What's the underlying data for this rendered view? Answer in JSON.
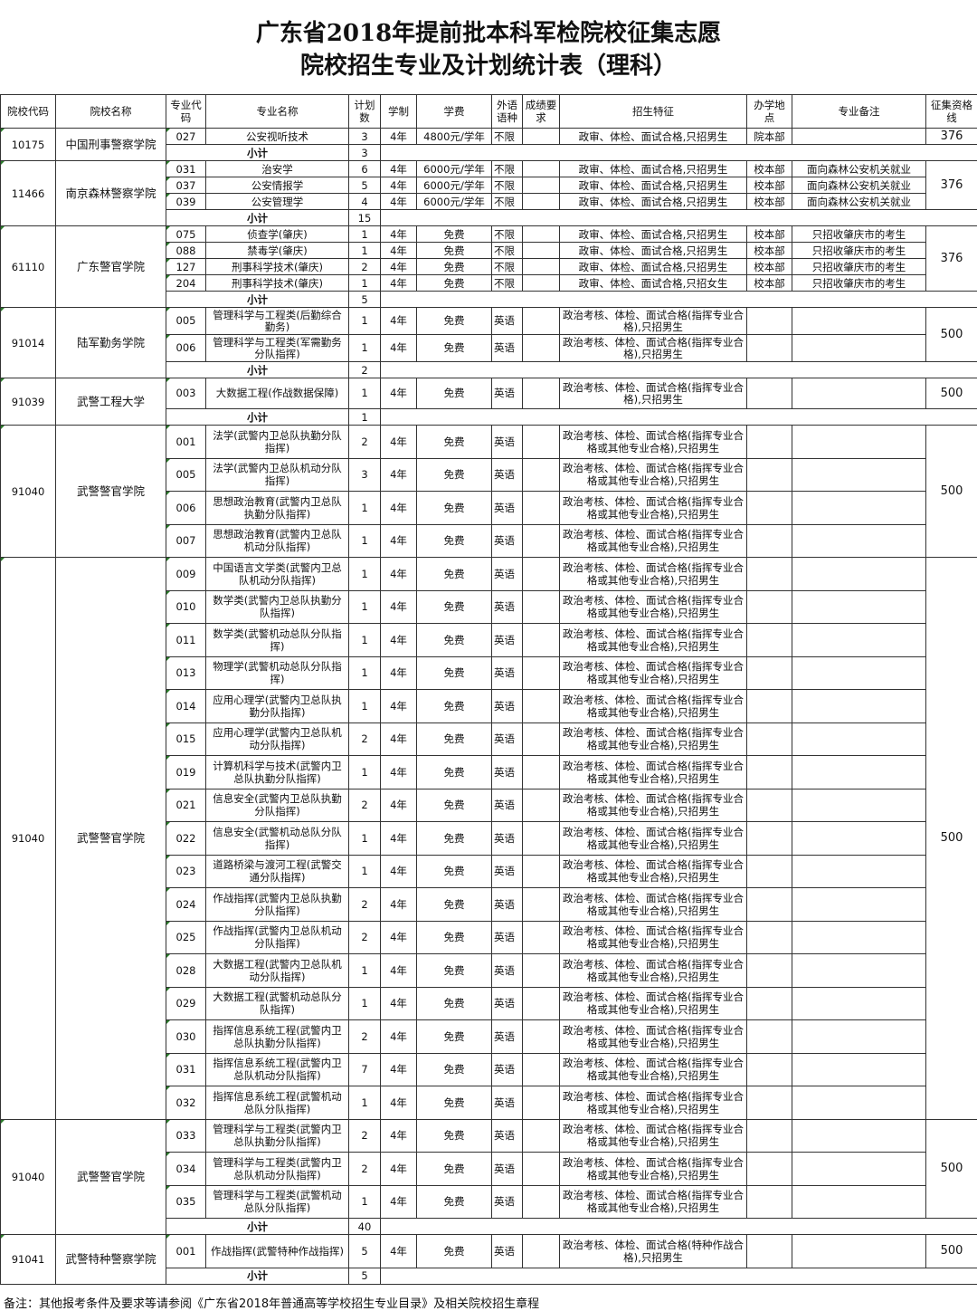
{
  "title_line1": "广东省2018年提前批本科军检院校征集志愿",
  "title_line2": "院校招生专业及计划统计表（理科）",
  "headers": [
    "院校代码",
    "院校名称",
    "专业代码",
    "专业名称",
    "计划数",
    "学制",
    "学费",
    "外语语种",
    "成绩要求",
    "招生特征",
    "办学地点",
    "专业备注",
    "征集资格线"
  ],
  "subtotal_label": "小计",
  "blocks": [
    {
      "school_code": "10175",
      "school_name": "中国刑事警察学院",
      "line": "376",
      "subtotal": "3",
      "rows": [
        {
          "code": "027",
          "major": "公安视听技术",
          "plan": "3",
          "years": "4年",
          "fee": "4800元/学年",
          "lang": "不限",
          "score": "",
          "feature": "政审、体检、面试合格,只招男生",
          "site": "院本部",
          "remark": ""
        }
      ]
    },
    {
      "school_code": "11466",
      "school_name": "南京森林警察学院",
      "line": "376",
      "subtotal": "15",
      "rows": [
        {
          "code": "031",
          "major": "治安学",
          "plan": "6",
          "years": "4年",
          "fee": "6000元/学年",
          "lang": "不限",
          "score": "",
          "feature": "政审、体检、面试合格,只招男生",
          "site": "校本部",
          "remark": "面向森林公安机关就业"
        },
        {
          "code": "037",
          "major": "公安情报学",
          "plan": "5",
          "years": "4年",
          "fee": "6000元/学年",
          "lang": "不限",
          "score": "",
          "feature": "政审、体检、面试合格,只招男生",
          "site": "校本部",
          "remark": "面向森林公安机关就业"
        },
        {
          "code": "039",
          "major": "公安管理学",
          "plan": "4",
          "years": "4年",
          "fee": "6000元/学年",
          "lang": "不限",
          "score": "",
          "feature": "政审、体检、面试合格,只招男生",
          "site": "校本部",
          "remark": "面向森林公安机关就业"
        }
      ]
    },
    {
      "school_code": "61110",
      "school_name": "广东警官学院",
      "line": "376",
      "subtotal": "5",
      "rows": [
        {
          "code": "075",
          "major": "侦查学(肇庆)",
          "plan": "1",
          "years": "4年",
          "fee": "免费",
          "lang": "不限",
          "score": "",
          "feature": "政审、体检、面试合格,只招男生",
          "site": "校本部",
          "remark": "只招收肇庆市的考生"
        },
        {
          "code": "088",
          "major": "禁毒学(肇庆)",
          "plan": "1",
          "years": "4年",
          "fee": "免费",
          "lang": "不限",
          "score": "",
          "feature": "政审、体检、面试合格,只招男生",
          "site": "校本部",
          "remark": "只招收肇庆市的考生"
        },
        {
          "code": "127",
          "major": "刑事科学技术(肇庆)",
          "plan": "2",
          "years": "4年",
          "fee": "免费",
          "lang": "不限",
          "score": "",
          "feature": "政审、体检、面试合格,只招男生",
          "site": "校本部",
          "remark": "只招收肇庆市的考生"
        },
        {
          "code": "204",
          "major": "刑事科学技术(肇庆)",
          "plan": "1",
          "years": "4年",
          "fee": "免费",
          "lang": "不限",
          "score": "",
          "feature": "政审、体检、面试合格,只招女生",
          "site": "校本部",
          "remark": "只招收肇庆市的考生"
        }
      ]
    },
    {
      "school_code": "91014",
      "school_name": "陆军勤务学院",
      "line": "500",
      "subtotal": "2",
      "rows": [
        {
          "code": "005",
          "major": "管理科学与工程类(后勤综合勤务)",
          "plan": "1",
          "years": "4年",
          "fee": "免费",
          "lang": "英语",
          "score": "",
          "feature": "政治考核、体检、面试合格(指挥专业合格),只招男生",
          "site": "",
          "remark": ""
        },
        {
          "code": "006",
          "major": "管理科学与工程类(军需勤务分队指挥)",
          "plan": "1",
          "years": "4年",
          "fee": "免费",
          "lang": "英语",
          "score": "",
          "feature": "政治考核、体检、面试合格(指挥专业合格),只招男生",
          "site": "",
          "remark": ""
        }
      ]
    },
    {
      "school_code": "91039",
      "school_name": "武警工程大学",
      "line": "500",
      "subtotal": "1",
      "rows": [
        {
          "code": "003",
          "major": "大数据工程(作战数据保障)",
          "plan": "1",
          "years": "4年",
          "fee": "免费",
          "lang": "英语",
          "score": "",
          "feature": "政治考核、体检、面试合格(指挥专业合格),只招男生",
          "site": "",
          "remark": ""
        }
      ]
    },
    {
      "school_code": "91040",
      "school_name": "武警警官学院",
      "line": "500",
      "subtotal": null,
      "rows": [
        {
          "code": "001",
          "major": "法学(武警内卫总队执勤分队指挥)",
          "plan": "2",
          "years": "4年",
          "fee": "免费",
          "lang": "英语",
          "score": "",
          "feature": "政治考核、体检、面试合格(指挥专业合格或其他专业合格),只招男生",
          "site": "",
          "remark": ""
        },
        {
          "code": "005",
          "major": "法学(武警内卫总队机动分队指挥)",
          "plan": "3",
          "years": "4年",
          "fee": "免费",
          "lang": "英语",
          "score": "",
          "feature": "政治考核、体检、面试合格(指挥专业合格或其他专业合格),只招男生",
          "site": "",
          "remark": ""
        },
        {
          "code": "006",
          "major": "思想政治教育(武警内卫总队执勤分队指挥)",
          "plan": "1",
          "years": "4年",
          "fee": "免费",
          "lang": "英语",
          "score": "",
          "feature": "政治考核、体检、面试合格(指挥专业合格或其他专业合格),只招男生",
          "site": "",
          "remark": ""
        },
        {
          "code": "007",
          "major": "思想政治教育(武警内卫总队机动分队指挥)",
          "plan": "1",
          "years": "4年",
          "fee": "免费",
          "lang": "英语",
          "score": "",
          "feature": "政治考核、体检、面试合格(指挥专业合格或其他专业合格),只招男生",
          "site": "",
          "remark": ""
        }
      ]
    },
    {
      "school_code": "91040",
      "school_name": "武警警官学院",
      "line": "500",
      "subtotal": null,
      "rows": [
        {
          "code": "009",
          "major": "中国语言文学类(武警内卫总队机动分队指挥)",
          "plan": "1",
          "years": "4年",
          "fee": "免费",
          "lang": "英语",
          "score": "",
          "feature": "政治考核、体检、面试合格(指挥专业合格或其他专业合格),只招男生",
          "site": "",
          "remark": ""
        },
        {
          "code": "010",
          "major": "数学类(武警内卫总队执勤分队指挥)",
          "plan": "1",
          "years": "4年",
          "fee": "免费",
          "lang": "英语",
          "score": "",
          "feature": "政治考核、体检、面试合格(指挥专业合格或其他专业合格),只招男生",
          "site": "",
          "remark": ""
        },
        {
          "code": "011",
          "major": "数学类(武警机动总队分队指挥)",
          "plan": "1",
          "years": "4年",
          "fee": "免费",
          "lang": "英语",
          "score": "",
          "feature": "政治考核、体检、面试合格(指挥专业合格或其他专业合格),只招男生",
          "site": "",
          "remark": ""
        },
        {
          "code": "013",
          "major": "物理学(武警机动总队分队指挥)",
          "plan": "1",
          "years": "4年",
          "fee": "免费",
          "lang": "英语",
          "score": "",
          "feature": "政治考核、体检、面试合格(指挥专业合格或其他专业合格),只招男生",
          "site": "",
          "remark": ""
        },
        {
          "code": "014",
          "major": "应用心理学(武警内卫总队执勤分队指挥)",
          "plan": "1",
          "years": "4年",
          "fee": "免费",
          "lang": "英语",
          "score": "",
          "feature": "政治考核、体检、面试合格(指挥专业合格或其他专业合格),只招男生",
          "site": "",
          "remark": ""
        },
        {
          "code": "015",
          "major": "应用心理学(武警内卫总队机动分队指挥)",
          "plan": "2",
          "years": "4年",
          "fee": "免费",
          "lang": "英语",
          "score": "",
          "feature": "政治考核、体检、面试合格(指挥专业合格或其他专业合格),只招男生",
          "site": "",
          "remark": ""
        },
        {
          "code": "019",
          "major": "计算机科学与技术(武警内卫总队执勤分队指挥)",
          "plan": "1",
          "years": "4年",
          "fee": "免费",
          "lang": "英语",
          "score": "",
          "feature": "政治考核、体检、面试合格(指挥专业合格或其他专业合格),只招男生",
          "site": "",
          "remark": ""
        },
        {
          "code": "021",
          "major": "信息安全(武警内卫总队执勤分队指挥)",
          "plan": "2",
          "years": "4年",
          "fee": "免费",
          "lang": "英语",
          "score": "",
          "feature": "政治考核、体检、面试合格(指挥专业合格或其他专业合格),只招男生",
          "site": "",
          "remark": ""
        },
        {
          "code": "022",
          "major": "信息安全(武警机动总队分队指挥)",
          "plan": "1",
          "years": "4年",
          "fee": "免费",
          "lang": "英语",
          "score": "",
          "feature": "政治考核、体检、面试合格(指挥专业合格或其他专业合格),只招男生",
          "site": "",
          "remark": ""
        },
        {
          "code": "023",
          "major": "道路桥梁与渡河工程(武警交通分队指挥)",
          "plan": "1",
          "years": "4年",
          "fee": "免费",
          "lang": "英语",
          "score": "",
          "feature": "政治考核、体检、面试合格(指挥专业合格或其他专业合格),只招男生",
          "site": "",
          "remark": ""
        },
        {
          "code": "024",
          "major": "作战指挥(武警内卫总队执勤分队指挥)",
          "plan": "2",
          "years": "4年",
          "fee": "免费",
          "lang": "英语",
          "score": "",
          "feature": "政治考核、体检、面试合格(指挥专业合格或其他专业合格),只招男生",
          "site": "",
          "remark": ""
        },
        {
          "code": "025",
          "major": "作战指挥(武警内卫总队机动分队指挥)",
          "plan": "2",
          "years": "4年",
          "fee": "免费",
          "lang": "英语",
          "score": "",
          "feature": "政治考核、体检、面试合格(指挥专业合格或其他专业合格),只招男生",
          "site": "",
          "remark": ""
        },
        {
          "code": "028",
          "major": "大数据工程(武警内卫总队机动分队指挥)",
          "plan": "1",
          "years": "4年",
          "fee": "免费",
          "lang": "英语",
          "score": "",
          "feature": "政治考核、体检、面试合格(指挥专业合格或其他专业合格),只招男生",
          "site": "",
          "remark": ""
        },
        {
          "code": "029",
          "major": "大数据工程(武警机动总队分队指挥)",
          "plan": "1",
          "years": "4年",
          "fee": "免费",
          "lang": "英语",
          "score": "",
          "feature": "政治考核、体检、面试合格(指挥专业合格或其他专业合格),只招男生",
          "site": "",
          "remark": ""
        },
        {
          "code": "030",
          "major": "指挥信息系统工程(武警内卫总队执勤分队指挥)",
          "plan": "2",
          "years": "4年",
          "fee": "免费",
          "lang": "英语",
          "score": "",
          "feature": "政治考核、体检、面试合格(指挥专业合格或其他专业合格),只招男生",
          "site": "",
          "remark": ""
        },
        {
          "code": "031",
          "major": "指挥信息系统工程(武警内卫总队机动分队指挥)",
          "plan": "7",
          "years": "4年",
          "fee": "免费",
          "lang": "英语",
          "score": "",
          "feature": "政治考核、体检、面试合格(指挥专业合格或其他专业合格),只招男生",
          "site": "",
          "remark": ""
        },
        {
          "code": "032",
          "major": "指挥信息系统工程(武警机动总队分队指挥)",
          "plan": "1",
          "years": "4年",
          "fee": "免费",
          "lang": "英语",
          "score": "",
          "feature": "政治考核、体检、面试合格(指挥专业合格或其他专业合格),只招男生",
          "site": "",
          "remark": ""
        }
      ]
    },
    {
      "school_code": "91040",
      "school_name": "武警警官学院",
      "line": "500",
      "subtotal": "40",
      "rows": [
        {
          "code": "033",
          "major": "管理科学与工程类(武警内卫总队执勤分队指挥)",
          "plan": "2",
          "years": "4年",
          "fee": "免费",
          "lang": "英语",
          "score": "",
          "feature": "政治考核、体检、面试合格(指挥专业合格或其他专业合格),只招男生",
          "site": "",
          "remark": ""
        },
        {
          "code": "034",
          "major": "管理科学与工程类(武警内卫总队机动分队指挥)",
          "plan": "2",
          "years": "4年",
          "fee": "免费",
          "lang": "英语",
          "score": "",
          "feature": "政治考核、体检、面试合格(指挥专业合格或其他专业合格),只招男生",
          "site": "",
          "remark": ""
        },
        {
          "code": "035",
          "major": "管理科学与工程类(武警机动总队分队指挥)",
          "plan": "1",
          "years": "4年",
          "fee": "免费",
          "lang": "英语",
          "score": "",
          "feature": "政治考核、体检、面试合格(指挥专业合格或其他专业合格),只招男生",
          "site": "",
          "remark": ""
        }
      ]
    },
    {
      "school_code": "91041",
      "school_name": "武警特种警察学院",
      "line": "500",
      "subtotal": "5",
      "rows": [
        {
          "code": "001",
          "major": "作战指挥(武警特种作战指挥)",
          "plan": "5",
          "years": "4年",
          "fee": "免费",
          "lang": "英语",
          "score": "",
          "feature": "政治考核、体检、面试合格(特种作战合格),只招男生",
          "site": "",
          "remark": ""
        }
      ]
    }
  ],
  "footnote": "备注：其他报考条件及要求等请参阅《广东省2018年普通高等学校招生专业目录》及相关院校招生章程"
}
